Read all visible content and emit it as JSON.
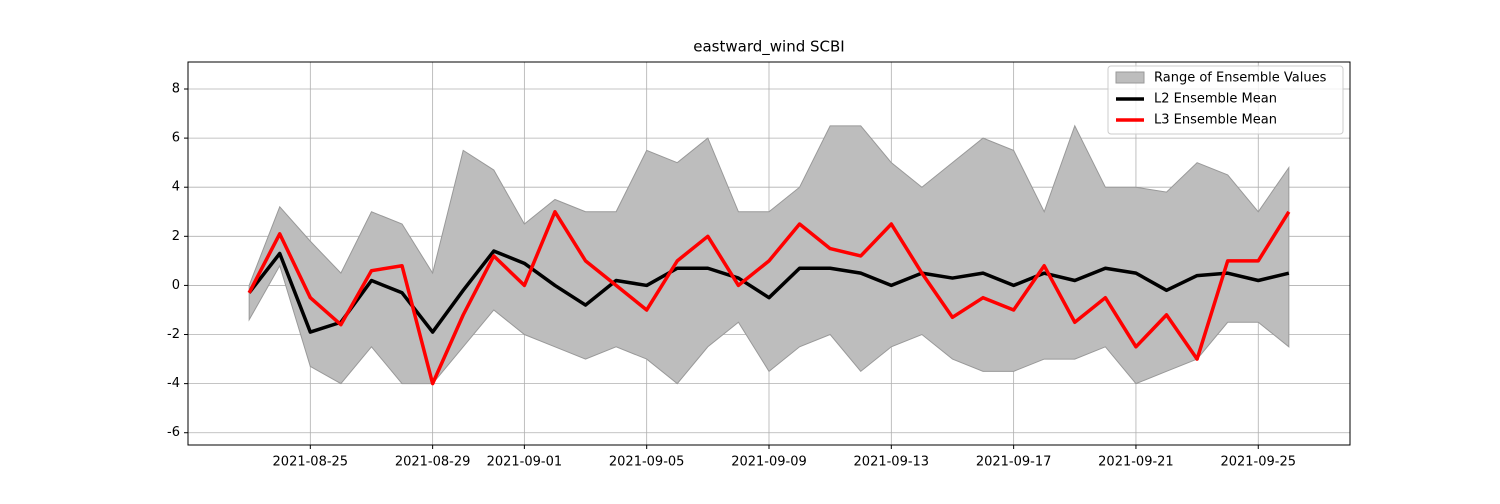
{
  "chart_data": {
    "type": "line",
    "title": "eastward_wind SCBI",
    "x": [
      "2021-08-23",
      "2021-08-24",
      "2021-08-25",
      "2021-08-26",
      "2021-08-27",
      "2021-08-28",
      "2021-08-29",
      "2021-08-30",
      "2021-08-31",
      "2021-09-01",
      "2021-09-02",
      "2021-09-03",
      "2021-09-04",
      "2021-09-05",
      "2021-09-06",
      "2021-09-07",
      "2021-09-08",
      "2021-09-09",
      "2021-09-10",
      "2021-09-11",
      "2021-09-12",
      "2021-09-13",
      "2021-09-14",
      "2021-09-15",
      "2021-09-16",
      "2021-09-17",
      "2021-09-18",
      "2021-09-19",
      "2021-09-20",
      "2021-09-21",
      "2021-09-22",
      "2021-09-23",
      "2021-09-24",
      "2021-09-25",
      "2021-09-26"
    ],
    "range": {
      "name": "Range of Ensemble Values",
      "color": "#bdbdbd",
      "low": [
        -1.4,
        0.8,
        -3.3,
        -4.0,
        -2.5,
        -4.0,
        -4.0,
        -2.5,
        -1.0,
        -2.0,
        -2.5,
        -3.0,
        -2.5,
        -3.0,
        -4.0,
        -2.5,
        -1.5,
        -3.5,
        -2.5,
        -2.0,
        -3.5,
        -2.5,
        -2.0,
        -3.0,
        -3.5,
        -3.5,
        -3.0,
        -3.0,
        -2.5,
        -4.0,
        -3.5,
        -3.0,
        -1.5,
        -1.5,
        -2.5
      ],
      "high": [
        0.0,
        3.2,
        1.8,
        0.5,
        3.0,
        2.5,
        0.5,
        5.5,
        4.7,
        2.5,
        3.5,
        3.0,
        3.0,
        5.5,
        5.0,
        6.0,
        3.0,
        3.0,
        4.0,
        6.5,
        6.5,
        5.0,
        4.0,
        5.0,
        6.0,
        5.5,
        3.0,
        6.5,
        4.0,
        4.0,
        3.8,
        5.0,
        4.5,
        3.0,
        4.8
      ]
    },
    "series": [
      {
        "name": "L2 Ensemble Mean",
        "color": "#000000",
        "values": [
          -0.3,
          1.3,
          -1.9,
          -1.5,
          0.2,
          -0.3,
          -1.9,
          -0.2,
          1.4,
          0.9,
          0.0,
          -0.8,
          0.2,
          0.0,
          0.7,
          0.7,
          0.3,
          -0.5,
          0.7,
          0.7,
          0.5,
          0.0,
          0.5,
          0.3,
          0.5,
          0.0,
          0.5,
          0.2,
          0.7,
          0.5,
          -0.2,
          0.4,
          0.5,
          0.2,
          0.5
        ]
      },
      {
        "name": "L3 Ensemble Mean",
        "color": "#ff0000",
        "values": [
          -0.3,
          2.1,
          -0.5,
          -1.6,
          0.6,
          0.8,
          -4.0,
          -1.2,
          1.2,
          0.0,
          3.0,
          1.0,
          0.0,
          -1.0,
          1.0,
          2.0,
          0.0,
          1.0,
          2.5,
          1.5,
          1.2,
          2.5,
          0.5,
          -1.3,
          -0.5,
          -1.0,
          0.8,
          -1.5,
          -0.5,
          -2.5,
          -1.2,
          -3.0,
          1.0,
          1.0,
          3.0
        ]
      }
    ],
    "xlim": [
      "2021-08-21",
      "2021-09-28"
    ],
    "xticks": [
      "2021-08-25",
      "2021-08-29",
      "2021-09-01",
      "2021-09-05",
      "2021-09-09",
      "2021-09-13",
      "2021-09-17",
      "2021-09-21",
      "2021-09-25"
    ],
    "ylim": [
      -6.5,
      9.1
    ],
    "yticks": [
      -6,
      -4,
      -2,
      0,
      2,
      4,
      6,
      8
    ],
    "grid": true,
    "legend": "upper right"
  }
}
